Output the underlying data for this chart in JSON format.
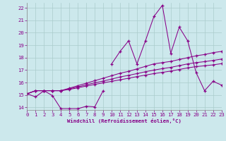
{
  "xlabel": "Windchill (Refroidissement éolien,°C)",
  "background_color": "#cce8ec",
  "grid_color": "#aacccc",
  "line_color": "#880088",
  "xlim": [
    0,
    23
  ],
  "ylim": [
    13.8,
    22.4
  ],
  "x_ticks": [
    0,
    1,
    2,
    3,
    4,
    5,
    6,
    7,
    8,
    9,
    10,
    11,
    12,
    13,
    14,
    15,
    16,
    17,
    18,
    19,
    20,
    21,
    22,
    23
  ],
  "y_ticks": [
    14,
    15,
    16,
    17,
    18,
    19,
    20,
    21,
    22
  ],
  "curve_dip": {
    "x": [
      0,
      1,
      2,
      3,
      4,
      5,
      6,
      7,
      8,
      9
    ],
    "y": [
      15.1,
      14.85,
      15.35,
      14.95,
      13.9,
      13.9,
      13.9,
      14.1,
      14.05,
      15.35
    ]
  },
  "curve_rise1": {
    "x": [
      0,
      1,
      2,
      3,
      4,
      5,
      6,
      7,
      8,
      9,
      10,
      11,
      12,
      13,
      14,
      15,
      16,
      17,
      18,
      19,
      20,
      21,
      22,
      23
    ],
    "y": [
      15.1,
      15.35,
      15.35,
      15.35,
      15.35,
      15.55,
      15.75,
      15.95,
      16.15,
      16.35,
      16.55,
      16.75,
      16.9,
      17.1,
      17.3,
      17.5,
      17.6,
      17.7,
      17.85,
      18.0,
      18.15,
      18.25,
      18.4,
      18.5
    ]
  },
  "curve_rise2": {
    "x": [
      0,
      1,
      2,
      3,
      4,
      5,
      6,
      7,
      8,
      9,
      10,
      11,
      12,
      13,
      14,
      15,
      16,
      17,
      18,
      19,
      20,
      21,
      22,
      23
    ],
    "y": [
      15.1,
      15.35,
      15.35,
      15.35,
      15.35,
      15.5,
      15.65,
      15.82,
      15.98,
      16.12,
      16.28,
      16.45,
      16.58,
      16.72,
      16.87,
      17.0,
      17.12,
      17.22,
      17.36,
      17.5,
      17.6,
      17.68,
      17.78,
      17.88
    ]
  },
  "curve_rise3": {
    "x": [
      0,
      1,
      2,
      3,
      4,
      5,
      6,
      7,
      8,
      9,
      10,
      11,
      12,
      13,
      14,
      15,
      16,
      17,
      18,
      19,
      20,
      21,
      22,
      23
    ],
    "y": [
      15.1,
      15.35,
      15.35,
      15.35,
      15.35,
      15.45,
      15.58,
      15.72,
      15.85,
      15.98,
      16.1,
      16.22,
      16.35,
      16.48,
      16.6,
      16.72,
      16.82,
      16.92,
      17.05,
      17.18,
      17.28,
      17.35,
      17.42,
      17.52
    ]
  },
  "curve_zig": {
    "x": [
      10,
      11,
      12,
      13,
      14,
      15,
      16,
      17,
      18,
      19,
      20,
      21,
      22,
      23
    ],
    "y": [
      17.5,
      18.5,
      19.35,
      17.5,
      19.35,
      21.3,
      22.2,
      18.35,
      20.45,
      19.35,
      16.8,
      15.35,
      16.1,
      15.8
    ]
  }
}
